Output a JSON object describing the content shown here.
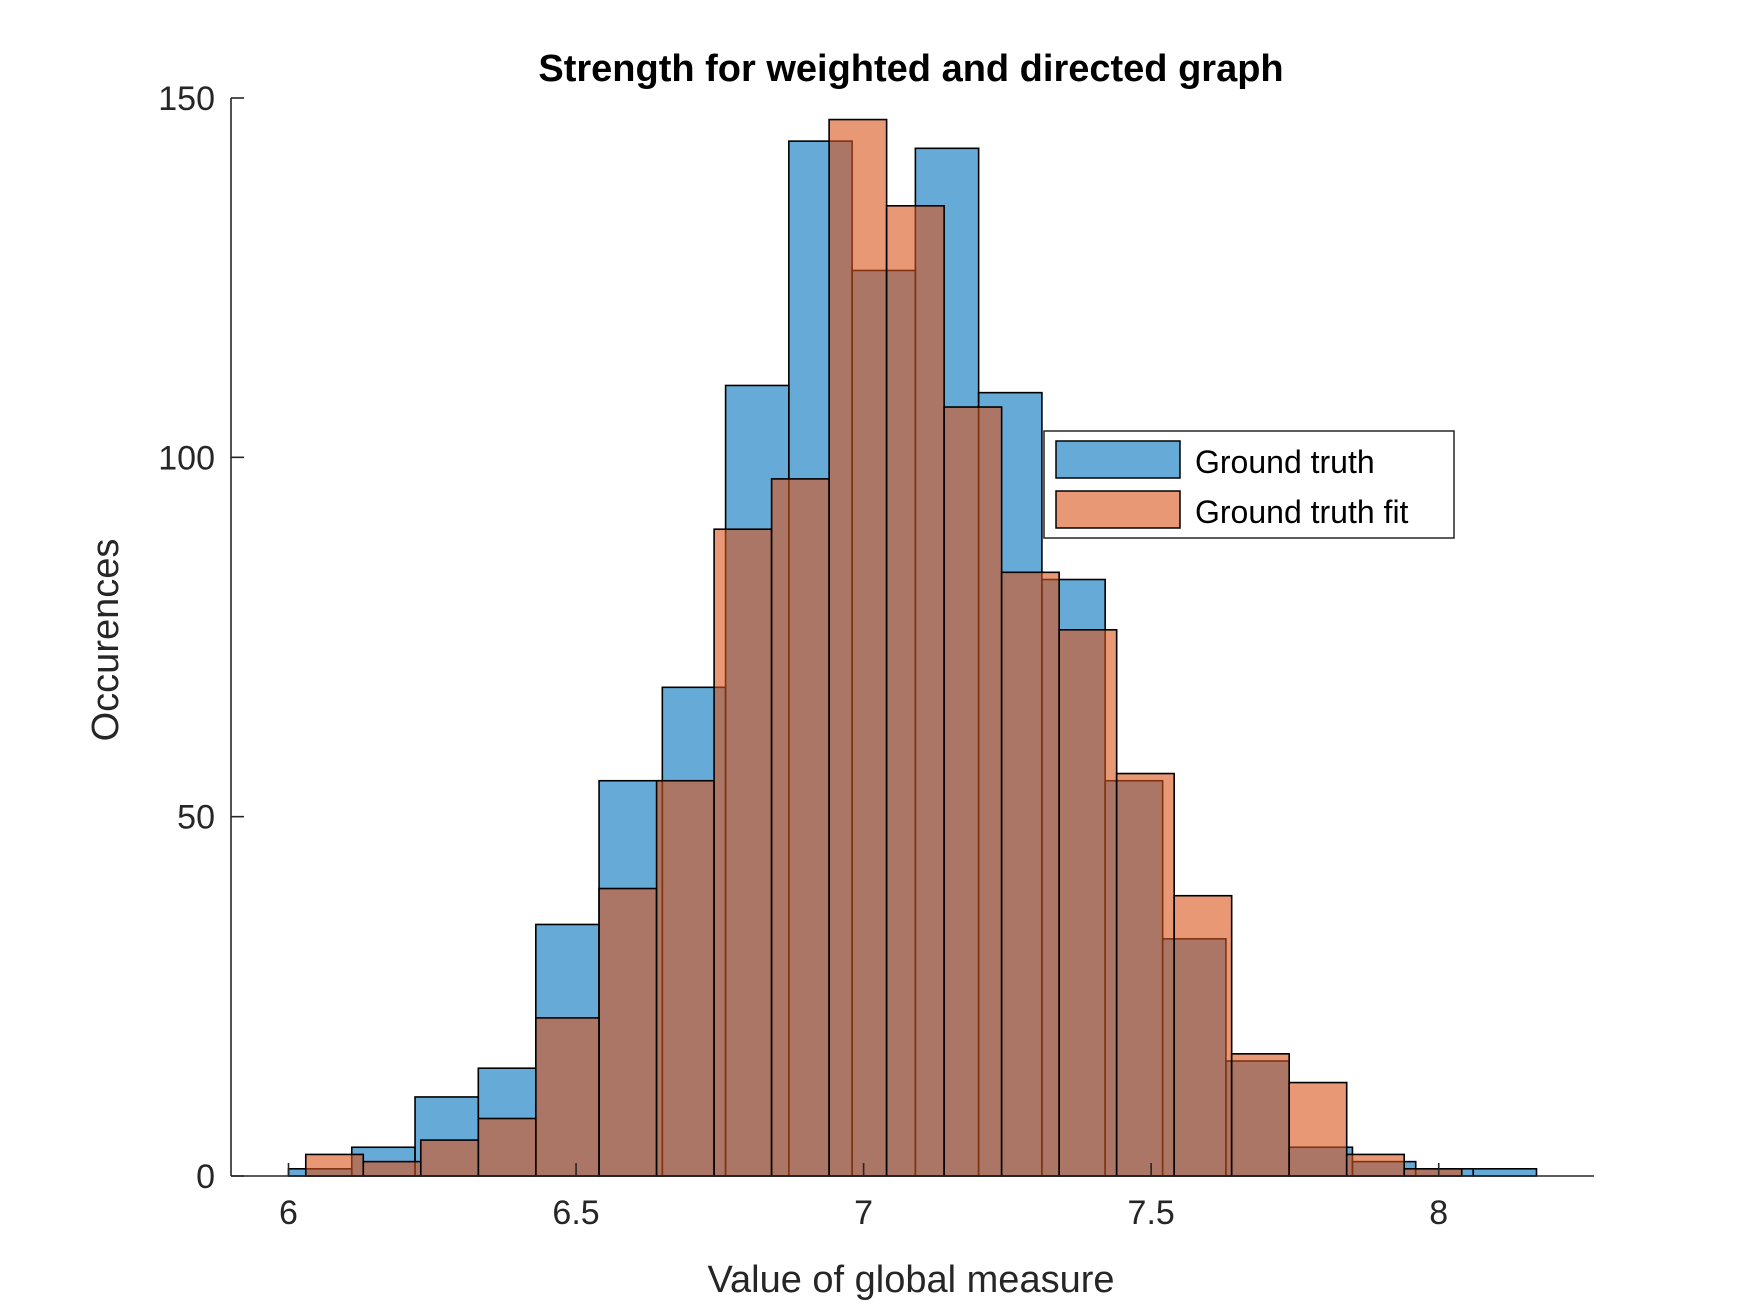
{
  "chart_data": {
    "type": "bar",
    "title": "Strength for weighted and directed graph",
    "xlabel": "Value of global measure",
    "ylabel": "Occurences",
    "xlim": [
      5.9,
      8.27
    ],
    "ylim": [
      0,
      150
    ],
    "xticks": [
      6,
      6.5,
      7,
      7.5,
      8
    ],
    "xtick_labels": [
      "6",
      "6.5",
      "7",
      "7.5",
      "8"
    ],
    "yticks": [
      0,
      50,
      100,
      150
    ],
    "ytick_labels": [
      "0",
      "50",
      "100",
      "150"
    ],
    "legend_position": "upper-right",
    "colors": {
      "series1": "#0072BD",
      "series2": "#D95319",
      "edge": "#000000",
      "axis": "#262626"
    },
    "series": [
      {
        "name": "Ground truth",
        "bins": [
          [
            6.0,
            6.11,
            1
          ],
          [
            6.11,
            6.22,
            4
          ],
          [
            6.22,
            6.33,
            11
          ],
          [
            6.33,
            6.43,
            15
          ],
          [
            6.43,
            6.54,
            35
          ],
          [
            6.54,
            6.65,
            55
          ],
          [
            6.65,
            6.76,
            68
          ],
          [
            6.76,
            6.87,
            110
          ],
          [
            6.87,
            6.98,
            144
          ],
          [
            6.98,
            7.09,
            126
          ],
          [
            7.09,
            7.2,
            143
          ],
          [
            7.2,
            7.31,
            109
          ],
          [
            7.31,
            7.42,
            83
          ],
          [
            7.42,
            7.52,
            55
          ],
          [
            7.52,
            7.63,
            33
          ],
          [
            7.63,
            7.74,
            16
          ],
          [
            7.74,
            7.85,
            4
          ],
          [
            7.85,
            7.96,
            2
          ],
          [
            7.96,
            8.06,
            1
          ],
          [
            8.06,
            8.17,
            1
          ]
        ]
      },
      {
        "name": "Ground truth fit",
        "bins": [
          [
            6.03,
            6.13,
            3
          ],
          [
            6.13,
            6.23,
            2
          ],
          [
            6.23,
            6.33,
            5
          ],
          [
            6.33,
            6.43,
            8
          ],
          [
            6.43,
            6.54,
            22
          ],
          [
            6.54,
            6.64,
            40
          ],
          [
            6.64,
            6.74,
            55
          ],
          [
            6.74,
            6.84,
            90
          ],
          [
            6.84,
            6.94,
            97
          ],
          [
            6.94,
            7.04,
            147
          ],
          [
            7.04,
            7.14,
            135
          ],
          [
            7.14,
            7.24,
            107
          ],
          [
            7.24,
            7.34,
            84
          ],
          [
            7.34,
            7.44,
            76
          ],
          [
            7.44,
            7.54,
            56
          ],
          [
            7.54,
            7.64,
            39
          ],
          [
            7.64,
            7.74,
            17
          ],
          [
            7.74,
            7.84,
            13
          ],
          [
            7.84,
            7.94,
            3
          ],
          [
            7.94,
            8.04,
            1
          ]
        ]
      }
    ]
  }
}
